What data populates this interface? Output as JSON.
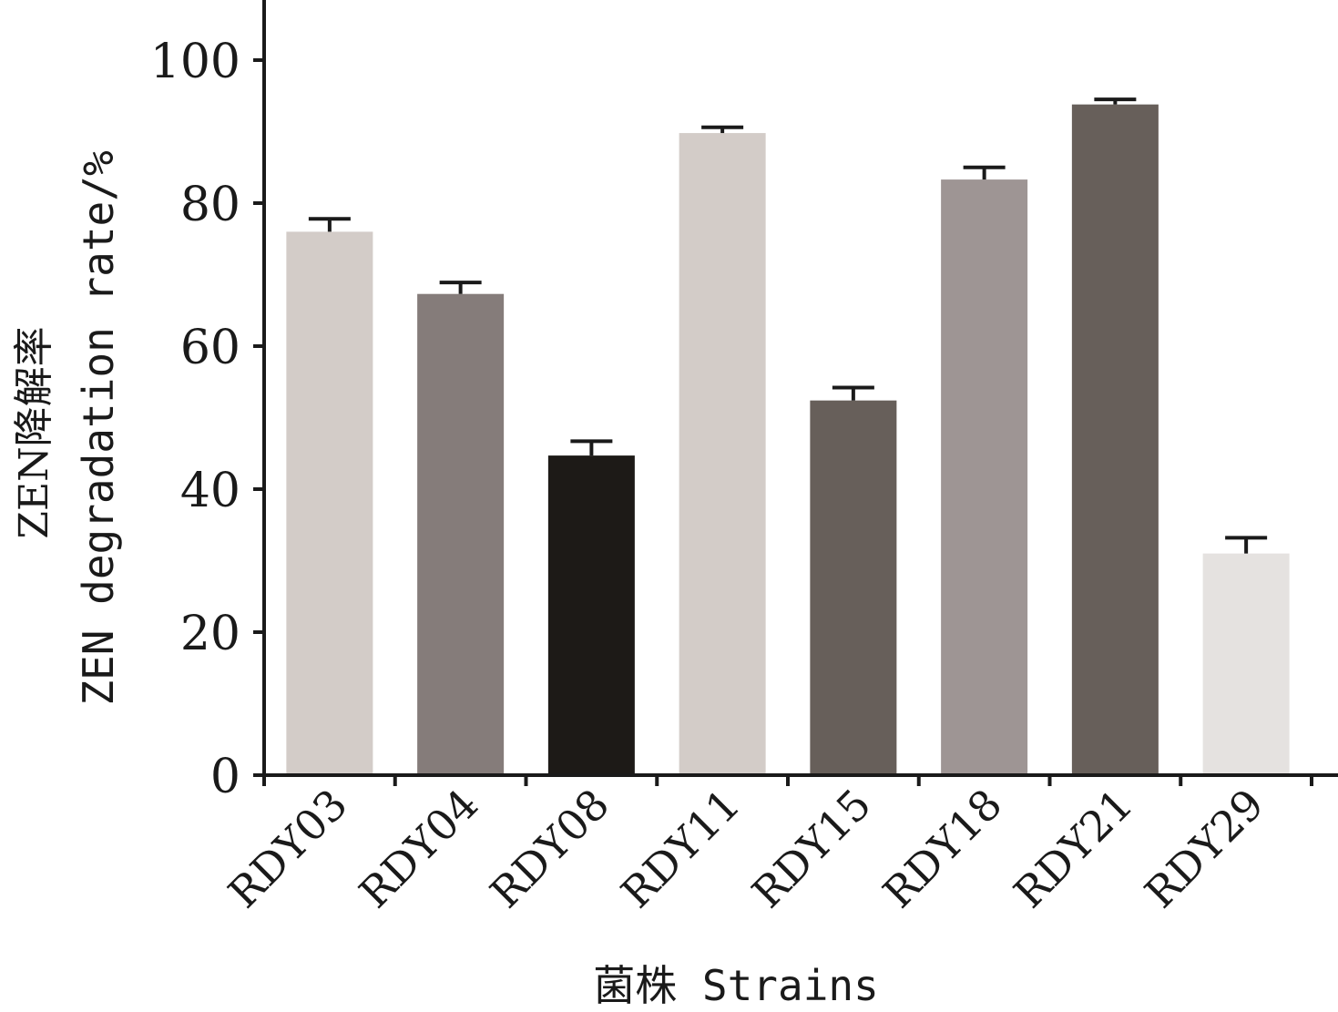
{
  "chart_data": {
    "type": "bar",
    "categories": [
      "RDY03",
      "RDY04",
      "RDY08",
      "RDY11",
      "RDY15",
      "RDY18",
      "RDY21",
      "RDY29"
    ],
    "values": [
      76.0,
      67.3,
      44.7,
      89.8,
      52.4,
      83.3,
      93.8,
      31.0
    ],
    "errors": [
      1.8,
      1.6,
      2.0,
      0.8,
      1.8,
      1.7,
      0.7,
      2.2
    ],
    "colors": [
      "#d3ccc8",
      "#857c7a",
      "#1d1a17",
      "#d3ccc8",
      "#675f5a",
      "#9e9594",
      "#675f5a",
      "#e5e2e0"
    ],
    "ylim": [
      0,
      100
    ],
    "yticks": [
      "0",
      "20",
      "40",
      "60",
      "80",
      "100"
    ],
    "ylabel": "ZEN degradation rate/%",
    "ylabel_cn": "ZEN降解率",
    "xlabel": "菌株 Strains"
  }
}
